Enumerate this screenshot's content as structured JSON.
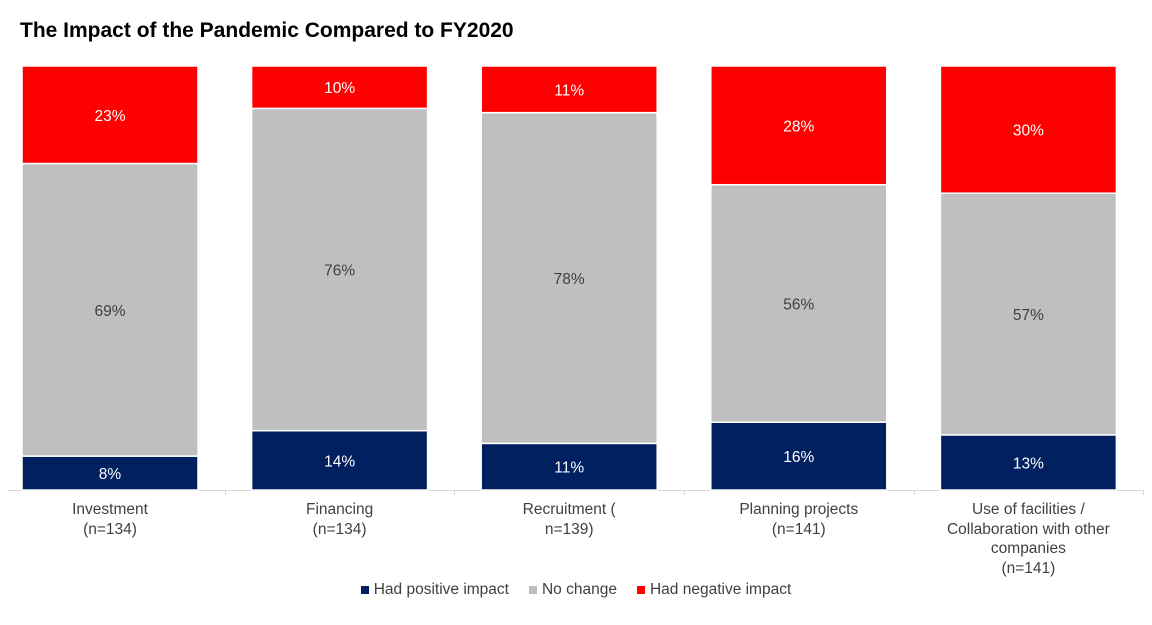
{
  "chart_data": {
    "type": "bar",
    "stacked": true,
    "title": "The Impact of the Pandemic Compared to FY2020",
    "categories": [
      [
        "Investment",
        "(n=134)"
      ],
      [
        "Financing",
        "(n=134)"
      ],
      [
        "Recruitment (",
        "n=139)"
      ],
      [
        "Planning projects",
        "(n=141)"
      ],
      [
        "Use of facilities /",
        "Collaboration with other",
        "companies",
        "(n=141)"
      ]
    ],
    "series": [
      {
        "name": "Had positive impact",
        "color": "#002060",
        "label_color": "#ffffff",
        "values": [
          8,
          14,
          11,
          16,
          13
        ]
      },
      {
        "name": "No change",
        "color": "#bfbfbf",
        "label_color": "#404040",
        "values": [
          69,
          76,
          78,
          56,
          57
        ]
      },
      {
        "name": "Had negative impact",
        "color": "#ff0000",
        "label_color": "#ffffff",
        "values": [
          23,
          10,
          11,
          28,
          30
        ]
      }
    ],
    "value_suffix": "%",
    "ylim": [
      0,
      100
    ],
    "legend_position": "bottom",
    "grid": false
  }
}
